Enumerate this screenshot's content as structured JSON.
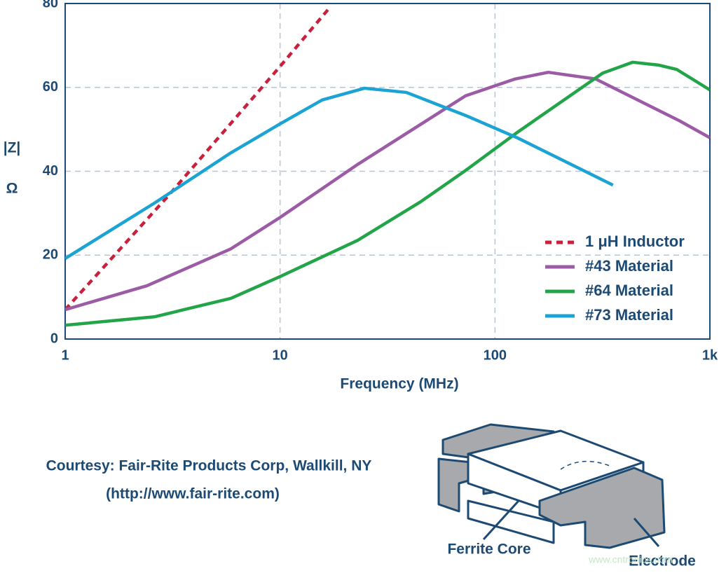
{
  "chart_data": {
    "type": "line",
    "xlabel": "Frequency (MHz)",
    "ylabel": "|Z|",
    "yunit": "Ω",
    "xscale": "log",
    "xlim": [
      1,
      1000
    ],
    "xticks": [
      1,
      10,
      100,
      {
        "value": 1000,
        "label": "1k"
      }
    ],
    "ylim": [
      0,
      80
    ],
    "yticks": [
      0,
      20,
      40,
      60,
      80
    ],
    "grid": true,
    "legend": "lower right",
    "series": [
      {
        "name": "1 μH Inductor",
        "color": "#c8203d",
        "dashed": true,
        "x": [
          1,
          3,
          10,
          17
        ],
        "values": [
          7,
          34,
          65,
          79
        ]
      },
      {
        "name": "#43 Material",
        "color": "#9b5ba5",
        "dashed": false,
        "x": [
          1,
          2.4,
          5.9,
          10,
          22.9,
          73,
          124,
          177,
          294,
          724,
          1000
        ],
        "values": [
          7,
          12.7,
          21.5,
          29,
          41.6,
          58,
          62,
          63.6,
          62,
          52,
          48
        ]
      },
      {
        "name": "#64 Material",
        "color": "#22a548",
        "dashed": false,
        "x": [
          1,
          2.6,
          5.9,
          10,
          22.9,
          45,
          73,
          128,
          317,
          437,
          580,
          700,
          1000
        ],
        "values": [
          3.3,
          5.3,
          9.7,
          14.9,
          23.5,
          32.7,
          40.2,
          49.4,
          63.4,
          66,
          65.3,
          64.3,
          59.4
        ]
      },
      {
        "name": "#73 Material",
        "color": "#1ba3d3",
        "dashed": false,
        "x": [
          1,
          2.6,
          5.9,
          10,
          15.7,
          24.7,
          38.7,
          73,
          128,
          354
        ],
        "values": [
          19.2,
          32.4,
          44.4,
          51.3,
          57,
          59.8,
          58.8,
          53.3,
          47.9,
          36.7
        ]
      }
    ]
  },
  "footer": {
    "source": "Courtesy: Fair-Rite Products Corp, Wallkill, NY",
    "url": "(http://www.fair-rite.com)"
  },
  "diagram": {
    "labels": [
      "Ferrite Core",
      "Electrode"
    ],
    "watermark": "www.cntronics.com"
  }
}
